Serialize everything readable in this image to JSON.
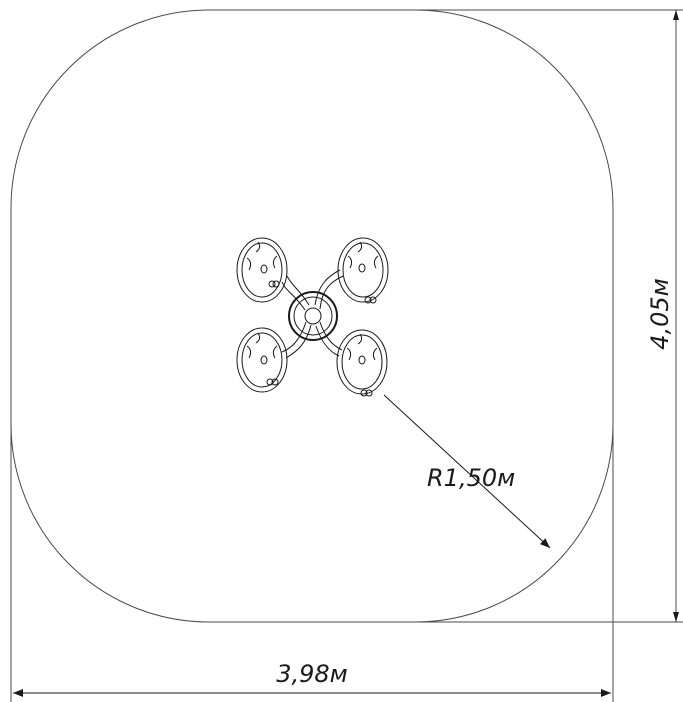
{
  "dimensions": {
    "width_label": "3,98м",
    "height_label": "4,05м",
    "radius_label": "R1,50м"
  },
  "colors": {
    "line": "#4a4a4a",
    "ink": "#1a1a1a",
    "background": "#ffffff"
  },
  "icons": [
    "arrowhead-icon",
    "bolt-icon"
  ]
}
